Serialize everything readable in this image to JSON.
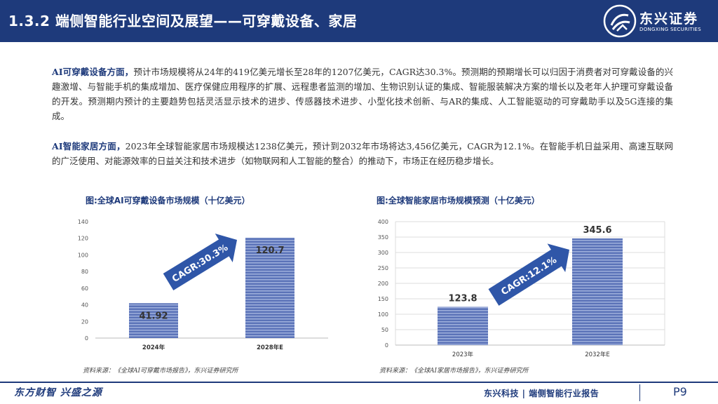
{
  "header": {
    "title": "1.3.2 端侧智能行业空间及展望——可穿戴设备、家居",
    "logo_name": "东兴证券",
    "logo_sub": "DONGXING SECURITIES"
  },
  "paragraphs": [
    {
      "lead": "AI可穿戴设备方面，",
      "text": "预计市场规模将从24年的419亿美元增长至28年的1207亿美元，CAGR达30.3%。预测期的预期增长可以归因于消费者对可穿戴设备的兴趣激增、与智能手机的集成增加、医疗保健应用程序的扩展、远程患者监测的增加、生物识别认证的集成、智能服装解决方案的增长以及老年人护理可穿戴设备的开发。预测期内预计的主要趋势包括灵活显示技术的进步、传感器技术进步、小型化技术创新、与AR的集成、人工智能驱动的可穿戴助手以及5G连接的集成。"
    },
    {
      "lead": "AI智能家居方面，",
      "text": "2023年全球智能家居市场规模达1238亿美元，预计到2032年市场将达3,456亿美元，CAGR为12.1%。在智能手机日益采用、高速互联网的广泛使用、对能源效率的日益关注和技术进步（如物联网和人工智能的整合）的推动下，市场正在经历稳步增长。"
    }
  ],
  "chart_titles": [
    "图:全球AI可穿戴设备市场规模（十亿美元）",
    "图:全球智能家居市场规模预测（十亿美元）"
  ],
  "sources": [
    "资料来源：《全球AI可穿戴市场报告》，东兴证券研究所",
    "资料来源：《全球AI家居市场报告》，东兴证券研究所"
  ],
  "chart_data": [
    {
      "type": "bar",
      "categories": [
        "2024年",
        "2028年E"
      ],
      "values": [
        41.92,
        120.7
      ],
      "data_labels": [
        "41.92",
        "120.7"
      ],
      "ylim": [
        0,
        140
      ],
      "yticks": [
        0,
        20,
        40,
        60,
        80,
        100,
        120,
        140
      ],
      "annotation": "CAGR:30.3%",
      "bar_color": "#5b73b8",
      "arrow_color": "#2f56a8",
      "grid": false
    },
    {
      "type": "bar",
      "categories": [
        "2023年",
        "2032年E"
      ],
      "values": [
        123.8,
        345.6
      ],
      "data_labels": [
        "123.8",
        "345.6"
      ],
      "ylim": [
        0,
        400
      ],
      "yticks": [
        0,
        50,
        100,
        150,
        200,
        250,
        300,
        350,
        400
      ],
      "annotation": "CAGR:12.1%",
      "bar_color": "#5b73b8",
      "arrow_color": "#2f56a8",
      "grid": true
    }
  ],
  "footer": {
    "slogan": "东方财智 兴盛之源",
    "report": "东兴科技 | 端侧智能行业报告",
    "page": "P9"
  }
}
